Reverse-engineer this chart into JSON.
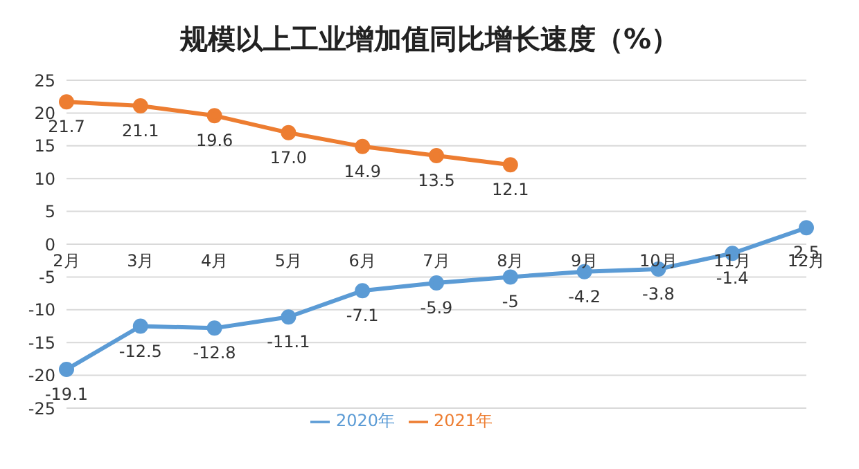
{
  "chart_data": {
    "type": "line",
    "title": "规模以上工业增加值同比增长速度（%）",
    "categories": [
      "2月",
      "3月",
      "4月",
      "5月",
      "6月",
      "7月",
      "8月",
      "9月",
      "10月",
      "11月",
      "12月"
    ],
    "series": [
      {
        "name": "2020年",
        "color": "#5b9bd5",
        "values": [
          -19.1,
          -12.5,
          -12.8,
          -11.1,
          -7.1,
          -5.9,
          -5,
          -4.2,
          -3.8,
          -1.4,
          2.5
        ],
        "value_labels": [
          "-19.1",
          "-12.5",
          "-12.8",
          "-11.1",
          "-7.1",
          "-5.9",
          "-5",
          "-4.2",
          "-3.8",
          "-1.4",
          "2.5"
        ]
      },
      {
        "name": "2021年",
        "color": "#ed7d31",
        "values": [
          21.7,
          21.1,
          19.6,
          17.0,
          14.9,
          13.5,
          12.1,
          null,
          null,
          null,
          null
        ],
        "value_labels": [
          "21.7",
          "21.1",
          "19.6",
          "17.0",
          "14.9",
          "13.5",
          "12.1",
          null,
          null,
          null,
          null
        ]
      }
    ],
    "ylim": [
      -25,
      25
    ],
    "yticks": [
      -25,
      -20,
      -15,
      -10,
      -5,
      0,
      5,
      10,
      15,
      20,
      25
    ],
    "grid": "y",
    "legend": "bottom",
    "marker": "circle",
    "line_style": "solid"
  }
}
